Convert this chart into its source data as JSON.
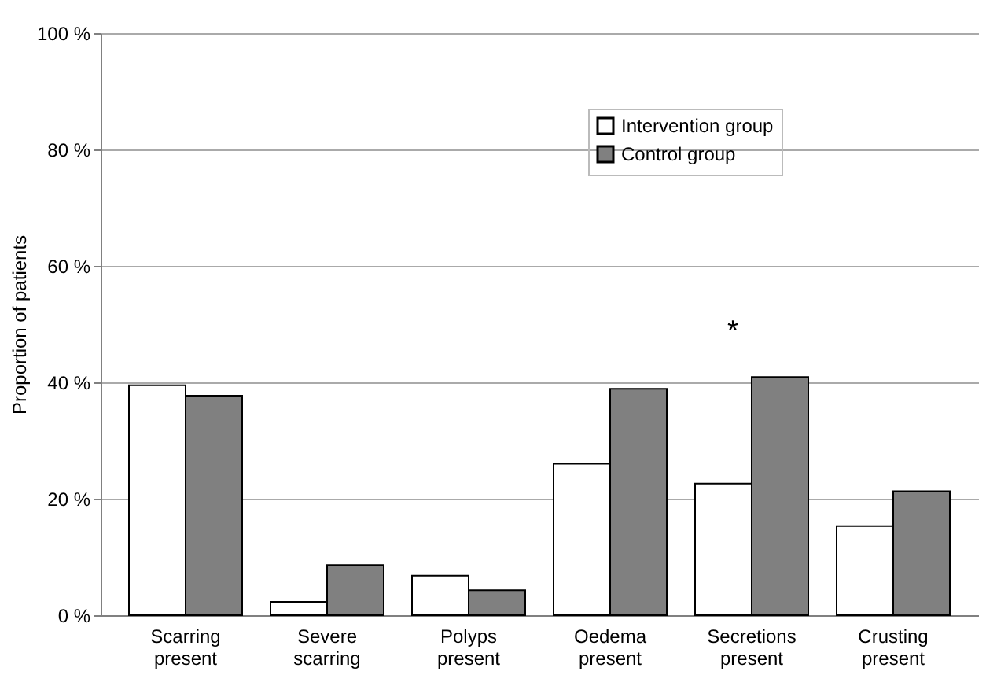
{
  "chart_data": {
    "type": "bar",
    "ylabel": "Proportion of patients",
    "categories": [
      "Scarring present",
      "Severe scarring",
      "Polyps present",
      "Oedema present",
      "Secretions present",
      "Crusting present"
    ],
    "series": [
      {
        "name": "Intervention group",
        "color": "#ffffff",
        "values": [
          39.5,
          2.3,
          6.8,
          26.0,
          22.6,
          15.3
        ]
      },
      {
        "name": "Control group",
        "color": "#808080",
        "values": [
          37.7,
          8.6,
          4.3,
          38.9,
          40.9,
          21.3
        ]
      }
    ],
    "ylim": [
      0,
      100
    ],
    "yticks": [
      {
        "value": 0,
        "label": "0 %"
      },
      {
        "value": 20,
        "label": "20 %"
      },
      {
        "value": 40,
        "label": "40 %"
      },
      {
        "value": 60,
        "label": "60 %"
      },
      {
        "value": 80,
        "label": "80 %"
      },
      {
        "value": 100,
        "label": "100 %"
      }
    ],
    "annotations": [
      "*"
    ],
    "grid": "y",
    "legend": "top right"
  }
}
